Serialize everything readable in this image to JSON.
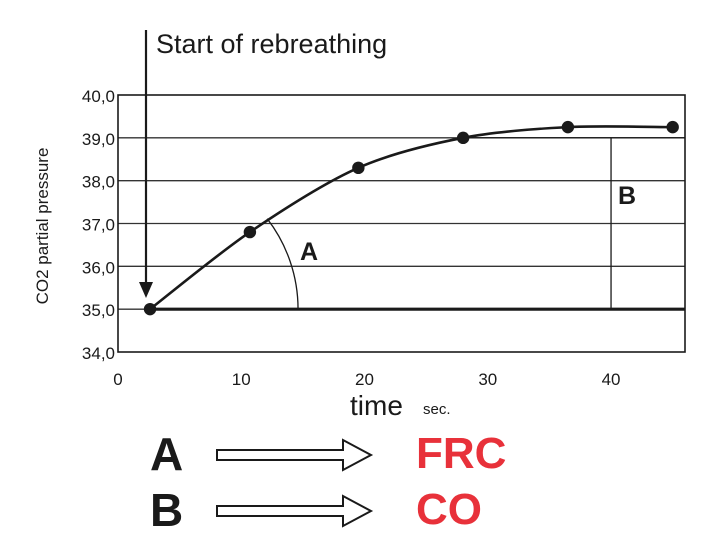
{
  "annotation": "Start of rebreathing",
  "chart_data": {
    "type": "line",
    "ylabel": "CO2 partial pressure",
    "xlabel": "time",
    "xunit": "sec.",
    "xlim": [
      0,
      46
    ],
    "ylim": [
      34.0,
      40.0
    ],
    "xticks": [
      0,
      10,
      20,
      30,
      40
    ],
    "yticks": [
      "34,0",
      "35,0",
      "36,0",
      "37,0",
      "38,0",
      "39,0",
      "40,0"
    ],
    "grid": "horizontal",
    "series": [
      {
        "x": [
          2.6,
          10.7,
          19.5,
          28.0,
          36.5,
          45.0
        ],
        "y": [
          35.0,
          36.8,
          38.3,
          39.0,
          39.25,
          39.25
        ]
      }
    ],
    "baseline_y": 35.0,
    "annotations": [
      {
        "label": "A",
        "meaning": "angle",
        "x": 15.5,
        "y": 36.15
      },
      {
        "label": "B",
        "meaning": "height",
        "x": 41.3,
        "y": 37.45
      }
    ]
  },
  "legend": [
    {
      "letter": "A",
      "result": "FRC",
      "color": "#e8313a"
    },
    {
      "letter": "B",
      "result": "CO",
      "color": "#e8313a"
    }
  ]
}
